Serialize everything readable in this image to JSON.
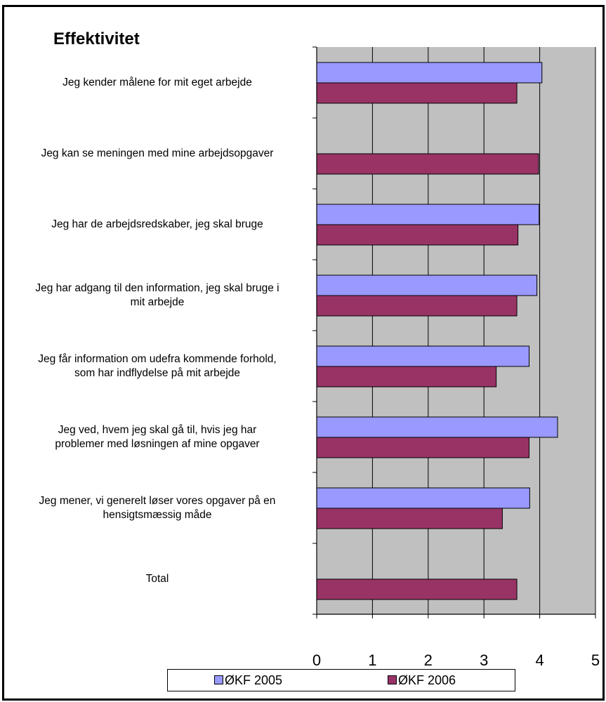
{
  "chart_data": {
    "type": "bar",
    "orientation": "horizontal",
    "title": "Effektivitet",
    "categories": [
      "Jeg kender målene for mit eget arbejde",
      "Jeg kan se meningen med mine arbejdsopgaver",
      "Jeg har de arbejdsredskaber, jeg skal bruge",
      "Jeg har adgang til den information, jeg skal bruge i mit arbejde",
      "Jeg får information om udefra kommende forhold, som har indflydelse på mit arbejde",
      "Jeg ved, hvem jeg skal gå til, hvis jeg har problemer med løsningen af mine opgaver",
      "Jeg mener, vi generelt løser vores opgaver på en hensigtsmæssig måde",
      "Total"
    ],
    "category_lines": [
      [
        "Jeg kender målene for mit eget arbejde"
      ],
      [
        "Jeg kan se meningen med mine arbejdsopgaver"
      ],
      [
        "Jeg har de arbejdsredskaber, jeg skal bruge"
      ],
      [
        "Jeg har adgang til den information, jeg skal bruge i",
        "mit arbejde"
      ],
      [
        "Jeg får information om udefra kommende forhold,",
        "som har indflydelse på mit arbejde"
      ],
      [
        "Jeg ved, hvem jeg skal gå til, hvis jeg har",
        "problemer med løsningen af mine opgaver"
      ],
      [
        "Jeg mener, vi generelt løser vores opgaver på en",
        "hensigtsmæssig måde"
      ],
      [
        "Total"
      ]
    ],
    "series": [
      {
        "name": "ØKF 2005",
        "color": "#9999FF",
        "values": [
          4.04,
          null,
          3.99,
          3.95,
          3.81,
          4.32,
          3.82,
          null
        ]
      },
      {
        "name": "ØKF 2006",
        "color": "#993366",
        "values": [
          3.59,
          3.98,
          3.61,
          3.59,
          3.22,
          3.81,
          3.33,
          3.59
        ]
      }
    ],
    "xlim": [
      0,
      5
    ],
    "xticks": [
      "0",
      "1",
      "2",
      "3",
      "4",
      "5"
    ],
    "gridlines": true,
    "plot_background": "#C0C0C0",
    "legend_position": "bottom"
  }
}
